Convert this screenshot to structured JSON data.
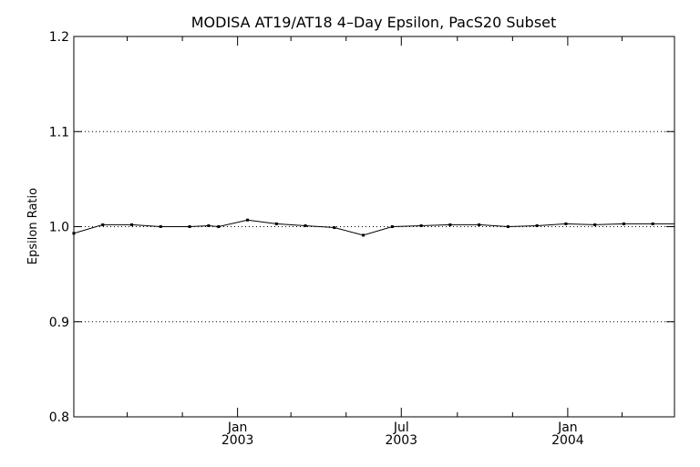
{
  "chart_data": {
    "type": "line",
    "title": "MODISA AT19/AT18 4–Day Epsilon, PacS20 Subset",
    "xlabel": "",
    "ylabel": "Epsilon Ratio",
    "ylim": [
      0.8,
      1.2
    ],
    "xlim": [
      "2002-07-04",
      "2004-04-28"
    ],
    "yticks": [
      0.8,
      0.9,
      1.0,
      1.1,
      1.2
    ],
    "ytick_labels": [
      "0.8",
      "0.9",
      "1.0",
      "1.1",
      "1.2"
    ],
    "xticks_major": [
      {
        "date": "2003-01-01",
        "month": "Jan",
        "year": "2003"
      },
      {
        "date": "2003-07-01",
        "month": "Jul",
        "year": "2003"
      },
      {
        "date": "2004-01-01",
        "month": "Jan",
        "year": "2004"
      }
    ],
    "xticks_minor": [
      "2002-09-01",
      "2002-11-01",
      "2003-03-01",
      "2003-05-01",
      "2003-09-01",
      "2003-11-01",
      "2004-03-01"
    ],
    "grid": {
      "horizontal_dotted_at": [
        0.9,
        1.0,
        1.1
      ]
    },
    "series": [
      {
        "x": [
          "2002-07-04",
          "2002-08-05",
          "2002-09-06",
          "2002-10-08",
          "2002-11-09",
          "2002-11-30",
          "2002-12-11",
          "2003-01-12",
          "2003-02-13",
          "2003-03-17",
          "2003-04-18",
          "2003-05-20",
          "2003-06-21",
          "2003-07-23",
          "2003-08-24",
          "2003-09-25",
          "2003-10-27",
          "2003-11-28",
          "2003-12-30",
          "2004-01-31",
          "2004-03-03",
          "2004-04-04"
        ],
        "y": [
          0.993,
          1.002,
          1.002,
          1.0,
          1.0,
          1.001,
          1.0,
          1.007,
          1.003,
          1.001,
          0.999,
          0.991,
          1.0,
          1.001,
          1.002,
          1.002,
          1.0,
          1.001,
          1.003,
          1.002,
          1.003,
          1.003
        ],
        "color": "#000000"
      }
    ]
  }
}
